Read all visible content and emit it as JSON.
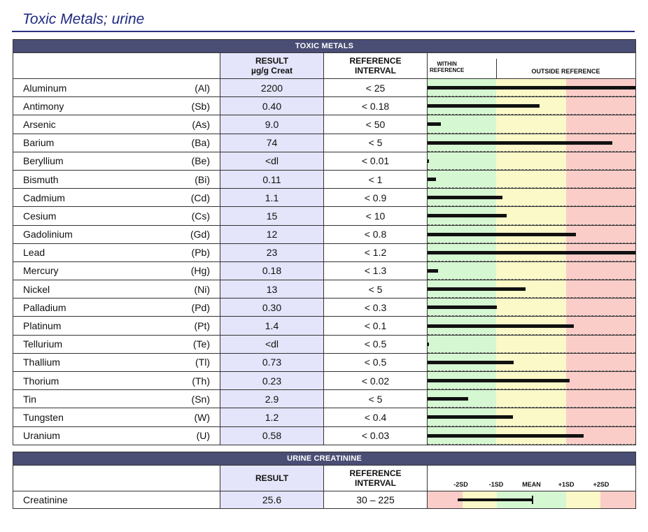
{
  "page_title": "Toxic Metals; urine",
  "toxic_metals": {
    "section_title": "TOXIC METALS",
    "result_header_line1": "RESULT",
    "result_header_line2": "µg/g Creat",
    "reference_header_line1": "REFERENCE",
    "reference_header_line2": "INTERVAL",
    "within_label_line1": "WITHIN",
    "within_label_line2": "REFERENCE",
    "outside_label": "OUTSIDE REFERENCE",
    "rows": [
      {
        "name": "Aluminum",
        "symbol": "(Al)",
        "result": "2200",
        "ref": "< 25",
        "bar_fraction": 1.0
      },
      {
        "name": "Antimony",
        "symbol": "(Sb)",
        "result": "0.40",
        "ref": "< 0.18",
        "bar_fraction": 0.54
      },
      {
        "name": "Arsenic",
        "symbol": "(As)",
        "result": "9.0",
        "ref": "< 50",
        "bar_fraction": 0.065
      },
      {
        "name": "Barium",
        "symbol": "(Ba)",
        "result": "74",
        "ref": "< 5",
        "bar_fraction": 0.89
      },
      {
        "name": "Beryllium",
        "symbol": "(Be)",
        "result": "<dl",
        "ref": "< 0.01",
        "bar_fraction": 0.005
      },
      {
        "name": "Bismuth",
        "symbol": "(Bi)",
        "result": "0.11",
        "ref": "< 1",
        "bar_fraction": 0.04
      },
      {
        "name": "Cadmium",
        "symbol": "(Cd)",
        "result": "1.1",
        "ref": "< 0.9",
        "bar_fraction": 0.36
      },
      {
        "name": "Cesium",
        "symbol": "(Cs)",
        "result": "15",
        "ref": "< 10",
        "bar_fraction": 0.38
      },
      {
        "name": "Gadolinium",
        "symbol": "(Gd)",
        "result": "12",
        "ref": "< 0.8",
        "bar_fraction": 0.715
      },
      {
        "name": "Lead",
        "symbol": "(Pb)",
        "result": "23",
        "ref": "< 1.2",
        "bar_fraction": 1.0
      },
      {
        "name": "Mercury",
        "symbol": "(Hg)",
        "result": "0.18",
        "ref": "< 1.3",
        "bar_fraction": 0.05
      },
      {
        "name": "Nickel",
        "symbol": "(Ni)",
        "result": "13",
        "ref": "< 5",
        "bar_fraction": 0.47
      },
      {
        "name": "Palladium",
        "symbol": "(Pd)",
        "result": "0.30",
        "ref": "< 0.3",
        "bar_fraction": 0.335
      },
      {
        "name": "Platinum",
        "symbol": "(Pt)",
        "result": "1.4",
        "ref": "< 0.1",
        "bar_fraction": 0.705
      },
      {
        "name": "Tellurium",
        "symbol": "(Te)",
        "result": "<dl",
        "ref": "< 0.5",
        "bar_fraction": 0.005
      },
      {
        "name": "Thallium",
        "symbol": "(Tl)",
        "result": "0.73",
        "ref": "< 0.5",
        "bar_fraction": 0.415
      },
      {
        "name": "Thorium",
        "symbol": "(Th)",
        "result": "0.23",
        "ref": "< 0.02",
        "bar_fraction": 0.685
      },
      {
        "name": "Tin",
        "symbol": "(Sn)",
        "result": "2.9",
        "ref": "< 5",
        "bar_fraction": 0.195
      },
      {
        "name": "Tungsten",
        "symbol": "(W)",
        "result": "1.2",
        "ref": "< 0.4",
        "bar_fraction": 0.41
      },
      {
        "name": "Uranium",
        "symbol": "(U)",
        "result": "0.58",
        "ref": "< 0.03",
        "bar_fraction": 0.75
      }
    ]
  },
  "urine_creatinine": {
    "section_title": "URINE CREATININE",
    "result_header": "RESULT",
    "reference_header_line1": "REFERENCE",
    "reference_header_line2": "INTERVAL",
    "sd_labels": [
      "-2SD",
      "-1SD",
      "MEAN",
      "+1SD",
      "+2SD"
    ],
    "row": {
      "name": "Creatinine",
      "result": "25.6",
      "ref": "30 – 225",
      "bar_start_fraction": 0.145,
      "bar_end_fraction": 0.5
    }
  },
  "colors": {
    "header_bg": "#4a4d74",
    "title_color": "#1f2a80",
    "within_green": "#d5f7d2",
    "caution_yellow": "#fbf9c8",
    "outside_red": "#fbcdc9",
    "result_column": "#e4e4fa"
  }
}
